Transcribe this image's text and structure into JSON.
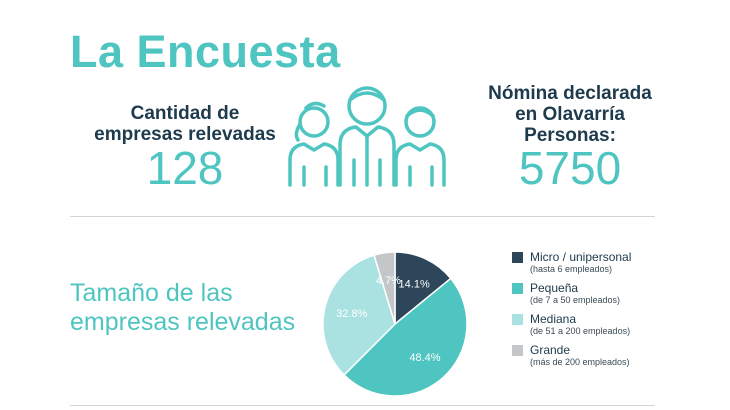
{
  "header": {
    "title": "La Encuesta"
  },
  "stats": {
    "companies": {
      "label_line1": "Cantidad de",
      "label_line2": "empresas relevadas",
      "value": "128"
    },
    "payroll": {
      "label_line1": "Nómina declarada",
      "label_line2": "en Olavarría",
      "label_line3": "Personas:",
      "value": "5750"
    }
  },
  "colors": {
    "accent": "#4ec5c1",
    "dark": "#1e3a4d",
    "light_teal": "#a9e2e1",
    "gray": "#c4c7c9"
  },
  "section": {
    "title_line1": "Tamaño de las",
    "title_line2": "empresas relevadas"
  },
  "chart_data": {
    "type": "pie",
    "slices": [
      {
        "name": "Micro / unipersonal",
        "description": "(hasta 6 empleados)",
        "value": 14.1,
        "label": "14.1%",
        "color": "#2d4659"
      },
      {
        "name": "Pequeña",
        "description": "(de 7 a 50 empleados)",
        "value": 48.4,
        "label": "48.4%",
        "color": "#4ec5c1"
      },
      {
        "name": "Mediana",
        "description": "(de 51 a 200 empleados)",
        "value": 32.8,
        "label": "32.8%",
        "color": "#a9e2e1"
      },
      {
        "name": "Grande",
        "description": "(más de 200 empleados)",
        "value": 4.7,
        "label": "4.7%",
        "color": "#c4c7c9"
      }
    ],
    "legend_position": "right"
  }
}
